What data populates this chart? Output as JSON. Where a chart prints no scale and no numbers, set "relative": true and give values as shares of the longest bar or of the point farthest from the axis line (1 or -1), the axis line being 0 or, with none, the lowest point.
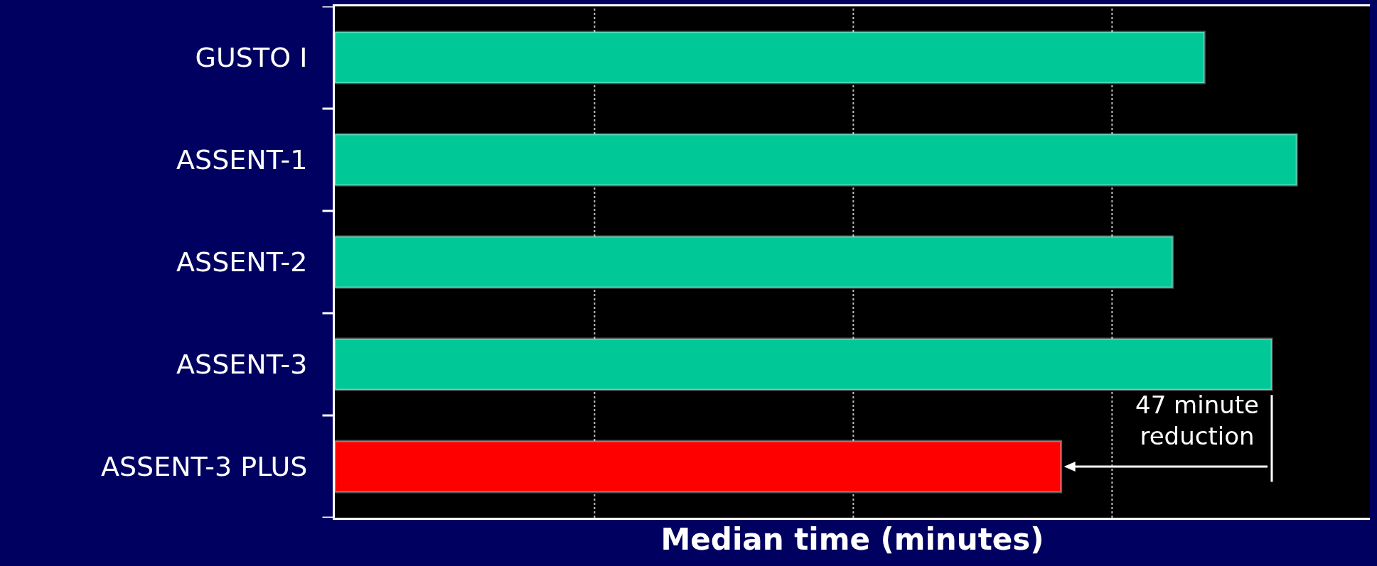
{
  "chart_data": {
    "type": "bar",
    "orientation": "horizontal",
    "relative": true,
    "xlabel": "Median time (minutes)",
    "categories": [
      "GUSTO I",
      "ASSENT-1",
      "ASSENT-2",
      "ASSENT-3",
      "ASSENT-3 PLUS"
    ],
    "values": [
      0.904,
      1,
      0.871,
      0.974,
      0.755
    ],
    "colors": [
      "#00c896",
      "#00c896",
      "#00c896",
      "#00c896",
      "#ff0000"
    ],
    "ref_lines": [
      {
        "axis": "x",
        "value": 0.27,
        "color": "#bbbbbb",
        "line_style": "dotted"
      },
      {
        "axis": "x",
        "value": 0.539,
        "color": "#bbbbbb",
        "line_style": "dotted"
      },
      {
        "axis": "x",
        "value": 0.808,
        "color": "#bbbbbb",
        "line_style": "dotted"
      }
    ],
    "annotations": [
      "47 minute\nreduction"
    ]
  }
}
